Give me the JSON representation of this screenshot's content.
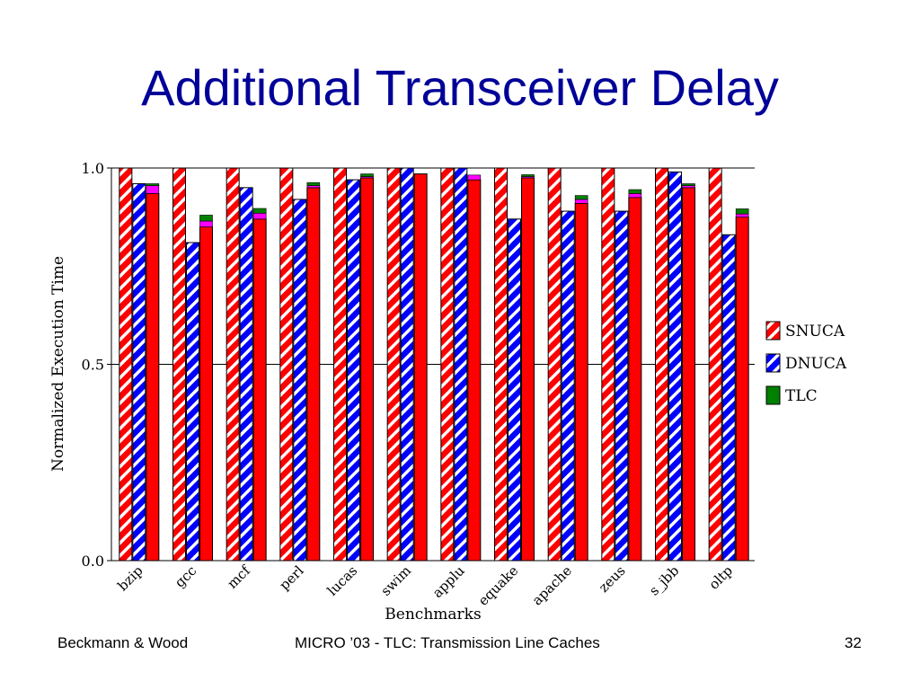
{
  "slide": {
    "title": "Additional Transceiver Delay",
    "footer_left": "Beckmann & Wood",
    "footer_center": "MICRO ’03 - TLC: Transmission Line Caches",
    "page_number": "32"
  },
  "colors": {
    "title": "#000099",
    "snuca": "#ff0000",
    "dnuca": "#0000ff",
    "tlc": "#008000",
    "tlc_extra": "#ff00ff"
  },
  "chart_data": {
    "type": "bar",
    "title": "",
    "xlabel": "Benchmarks",
    "ylabel": "Normalized Execution Time",
    "ylim": [
      0,
      1.0
    ],
    "yticks": [
      "0.0",
      "0.5",
      "1.0"
    ],
    "categories": [
      "bzip",
      "gcc",
      "mcf",
      "perl",
      "lucas",
      "swim",
      "applu",
      "equake",
      "apache",
      "zeus",
      "s_jbb",
      "oltp"
    ],
    "series": [
      {
        "name": "SNUCA",
        "pattern": "hatched",
        "values": [
          1.0,
          1.0,
          1.0,
          1.0,
          1.0,
          1.0,
          1.0,
          1.0,
          1.0,
          1.0,
          1.0,
          1.0
        ]
      },
      {
        "name": "DNUCA",
        "pattern": "hatched",
        "values": [
          0.96,
          0.81,
          0.95,
          0.92,
          0.97,
          1.0,
          1.0,
          0.87,
          0.89,
          0.89,
          0.99,
          0.83
        ]
      },
      {
        "name": "TLC",
        "pattern": "stacked",
        "stack": {
          "base": [
            0.935,
            0.85,
            0.87,
            0.95,
            0.975,
            0.985,
            0.97,
            0.975,
            0.91,
            0.925,
            0.95,
            0.875
          ],
          "magenta": [
            0.02,
            0.015,
            0.015,
            0.005,
            0.003,
            0.0,
            0.012,
            0.003,
            0.01,
            0.01,
            0.005,
            0.008
          ],
          "green": [
            0.005,
            0.015,
            0.012,
            0.008,
            0.007,
            0.0,
            0.0,
            0.005,
            0.01,
            0.01,
            0.005,
            0.013
          ]
        }
      }
    ],
    "legend_position": "right"
  }
}
